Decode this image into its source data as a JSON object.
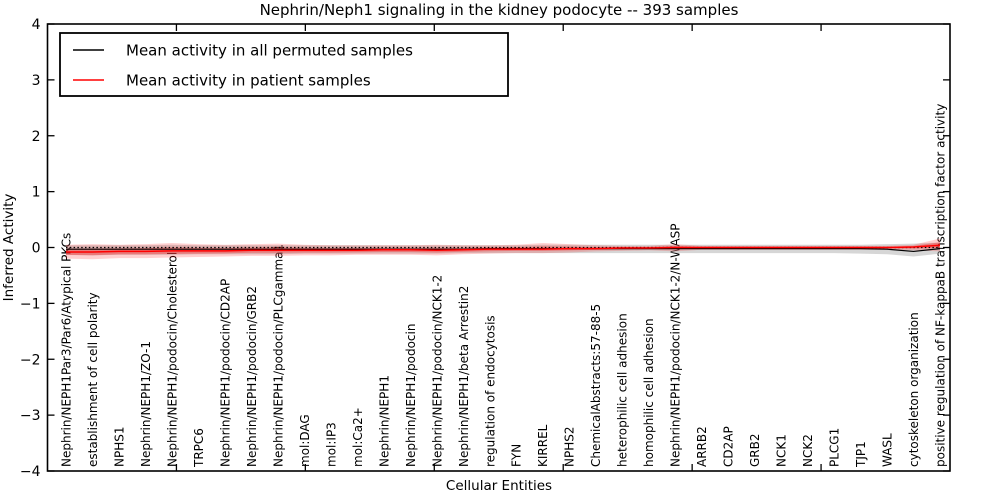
{
  "figure": {
    "title": "Nephrin/Neph1 signaling in the kidney podocyte -- 393 samples",
    "xlabel": "Cellular Entities",
    "ylabel": "Inferred Activity"
  },
  "legend": {
    "items": [
      {
        "label": "Mean activity in all permuted samples",
        "color": "#000000"
      },
      {
        "label": "Mean activity in patient samples",
        "color": "#ff0000"
      }
    ]
  },
  "colors": {
    "patient_line": "#ff0000",
    "permuted_line": "#000000",
    "permuted_band": "#999999",
    "axis": "#000000"
  },
  "chart_data": {
    "type": "line",
    "title": "Nephrin/Neph1 signaling in the kidney podocyte -- 393 samples",
    "xlabel": "Cellular Entities",
    "ylabel": "Inferred Activity",
    "ylim": [
      -4,
      4
    ],
    "yticks": [
      -4,
      -3,
      -2,
      -1,
      0,
      1,
      2,
      3,
      4
    ],
    "grid": false,
    "legend_position": "upper left",
    "zero_line": {
      "y": 0,
      "style": "dotted",
      "color": "#000000"
    },
    "categories": [
      "Nephrin/NEPH1Par3/Par6/Atypical PKCs",
      "establishment of cell polarity",
      "NPHS1",
      "Nephrin/NEPH1/ZO-1",
      "Nephrin/NEPH1/podocin/Cholesterol",
      "TRPC6",
      "Nephrin/NEPH1/podocin/CD2AP",
      "Nephrin/NEPH1/podocin/GRB2",
      "Nephrin/NEPH1/podocin/PLCgamma1",
      "mol:DAG",
      "mol:IP3",
      "mol:Ca2+",
      "Nephrin/NEPH1",
      "Nephrin/NEPH1/podocin",
      "Nephrin/NEPH1/podocin/NCK1-2",
      "Nephrin/NEPH1/beta Arrestin2",
      "regulation of endocytosis",
      "FYN",
      "KIRREL",
      "NPHS2",
      "ChemicalAbstracts:57-88-5",
      "heterophilic cell adhesion",
      "homophilic cell adhesion",
      "Nephrin/NEPH1/podocin/NCK1-2/N-WASP",
      "ARRB2",
      "CD2AP",
      "GRB2",
      "NCK1",
      "NCK2",
      "PLCG1",
      "TJP1",
      "WASL",
      "cytoskeleton organization",
      "positive regulation of NF-kappaB transcription factor activity"
    ],
    "series": [
      {
        "name": "Mean activity in all permuted samples",
        "color": "#000000",
        "band_color": "#999999",
        "values": [
          -0.03,
          -0.03,
          -0.03,
          -0.03,
          -0.03,
          -0.03,
          -0.03,
          -0.03,
          -0.03,
          -0.03,
          -0.03,
          -0.03,
          -0.03,
          -0.03,
          -0.03,
          -0.03,
          -0.02,
          -0.02,
          -0.02,
          -0.02,
          -0.02,
          -0.02,
          -0.02,
          -0.02,
          -0.02,
          -0.02,
          -0.02,
          -0.02,
          -0.02,
          -0.02,
          -0.02,
          -0.03,
          -0.07,
          -0.02
        ],
        "band_upper": [
          0.04,
          0.04,
          0.04,
          0.04,
          0.05,
          0.04,
          0.04,
          0.04,
          0.04,
          0.04,
          0.04,
          0.04,
          0.04,
          0.04,
          0.04,
          0.04,
          0.04,
          0.04,
          0.05,
          0.05,
          0.05,
          0.05,
          0.05,
          0.05,
          0.05,
          0.05,
          0.05,
          0.05,
          0.05,
          0.05,
          0.05,
          0.06,
          0.07,
          0.09
        ],
        "band_lower": [
          -0.13,
          -0.14,
          -0.13,
          -0.13,
          -0.13,
          -0.12,
          -0.12,
          -0.12,
          -0.12,
          -0.11,
          -0.11,
          -0.11,
          -0.11,
          -0.11,
          -0.11,
          -0.1,
          -0.1,
          -0.1,
          -0.1,
          -0.1,
          -0.1,
          -0.1,
          -0.1,
          -0.1,
          -0.1,
          -0.1,
          -0.1,
          -0.1,
          -0.1,
          -0.1,
          -0.11,
          -0.12,
          -0.16,
          -0.11
        ]
      },
      {
        "name": "Mean activity in patient samples",
        "color": "#ff0000",
        "band_color": "#ff0000",
        "values": [
          -0.08,
          -0.08,
          -0.07,
          -0.07,
          -0.06,
          -0.06,
          -0.06,
          -0.05,
          -0.05,
          -0.05,
          -0.05,
          -0.05,
          -0.04,
          -0.04,
          -0.05,
          -0.04,
          -0.03,
          -0.03,
          -0.03,
          -0.02,
          -0.02,
          -0.01,
          -0.01,
          0.0,
          0.0,
          0.0,
          0.0,
          0.0,
          0.0,
          0.0,
          0.0,
          0.0,
          0.01,
          0.04
        ],
        "band_upper": [
          0.05,
          0.06,
          0.05,
          0.06,
          0.08,
          0.06,
          0.05,
          0.06,
          0.07,
          0.05,
          0.04,
          0.04,
          0.04,
          0.04,
          0.05,
          0.04,
          0.04,
          0.05,
          0.08,
          0.06,
          0.04,
          0.03,
          0.03,
          0.06,
          0.03,
          0.03,
          0.03,
          0.03,
          0.03,
          0.03,
          0.03,
          0.03,
          0.05,
          0.16
        ],
        "band_lower": [
          -0.2,
          -0.21,
          -0.19,
          -0.19,
          -0.18,
          -0.17,
          -0.16,
          -0.15,
          -0.15,
          -0.14,
          -0.14,
          -0.13,
          -0.13,
          -0.13,
          -0.14,
          -0.12,
          -0.11,
          -0.1,
          -0.1,
          -0.09,
          -0.07,
          -0.06,
          -0.05,
          -0.07,
          -0.04,
          -0.04,
          -0.04,
          -0.04,
          -0.04,
          -0.04,
          -0.04,
          -0.04,
          -0.05,
          -0.07
        ]
      }
    ]
  }
}
